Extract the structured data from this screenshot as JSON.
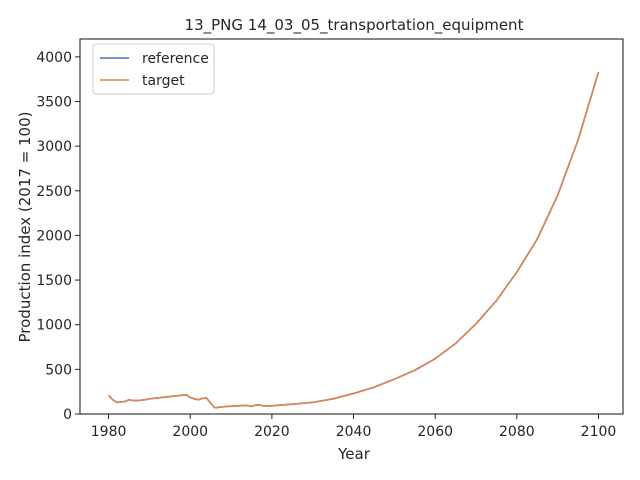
{
  "chart_data": {
    "type": "line",
    "title": "13_PNG 14_03_05_transportation_equipment",
    "xlabel": "Year",
    "ylabel": "Production index (2017 = 100)",
    "xlim": [
      1973,
      2106
    ],
    "ylim": [
      0,
      4200
    ],
    "xticks": [
      1980,
      2000,
      2020,
      2040,
      2060,
      2080,
      2100
    ],
    "yticks": [
      0,
      500,
      1000,
      1500,
      2000,
      2500,
      3000,
      3500,
      4000
    ],
    "grid": false,
    "legend_position": "top-left",
    "series": [
      {
        "name": "reference",
        "color": "#4c72b0",
        "x": [
          1980,
          1981,
          1982,
          1983,
          1984,
          1985,
          1986,
          1987,
          1988,
          1989,
          1990,
          1991,
          1992,
          1993,
          1994,
          1995,
          1996,
          1997,
          1998,
          1999,
          2000,
          2001,
          2002,
          2003,
          2004,
          2005,
          2006,
          2007,
          2008,
          2009,
          2010,
          2011,
          2012,
          2013,
          2014,
          2015,
          2016,
          2017,
          2018,
          2019,
          2020,
          2021,
          2022,
          2025,
          2030,
          2035,
          2040,
          2045,
          2050,
          2055,
          2060,
          2065,
          2070,
          2075,
          2080,
          2085,
          2090,
          2095,
          2100
        ],
        "y": [
          210,
          160,
          130,
          135,
          140,
          160,
          150,
          150,
          155,
          160,
          170,
          175,
          180,
          185,
          190,
          195,
          200,
          205,
          210,
          215,
          185,
          170,
          160,
          175,
          180,
          120,
          70,
          75,
          80,
          85,
          88,
          90,
          92,
          95,
          95,
          85,
          100,
          100,
          90,
          90,
          92,
          95,
          100,
          110,
          130,
          170,
          230,
          300,
          390,
          490,
          620,
          790,
          1010,
          1270,
          1590,
          1960,
          2450,
          3070,
          3830
        ]
      },
      {
        "name": "target",
        "color": "#dd8452",
        "x": [
          1980,
          1981,
          1982,
          1983,
          1984,
          1985,
          1986,
          1987,
          1988,
          1989,
          1990,
          1991,
          1992,
          1993,
          1994,
          1995,
          1996,
          1997,
          1998,
          1999,
          2000,
          2001,
          2002,
          2003,
          2004,
          2005,
          2006,
          2007,
          2008,
          2009,
          2010,
          2011,
          2012,
          2013,
          2014,
          2015,
          2016,
          2017,
          2018,
          2019,
          2020,
          2021,
          2022,
          2025,
          2030,
          2035,
          2040,
          2045,
          2050,
          2055,
          2060,
          2065,
          2070,
          2075,
          2080,
          2085,
          2090,
          2095,
          2100
        ],
        "y": [
          210,
          160,
          130,
          135,
          140,
          160,
          150,
          150,
          155,
          160,
          170,
          175,
          180,
          185,
          190,
          195,
          200,
          205,
          210,
          215,
          185,
          170,
          160,
          175,
          180,
          120,
          70,
          75,
          80,
          85,
          88,
          90,
          92,
          95,
          95,
          85,
          100,
          100,
          90,
          90,
          92,
          95,
          100,
          110,
          130,
          170,
          230,
          300,
          390,
          490,
          620,
          790,
          1010,
          1270,
          1590,
          1960,
          2450,
          3070,
          3830
        ]
      }
    ]
  }
}
